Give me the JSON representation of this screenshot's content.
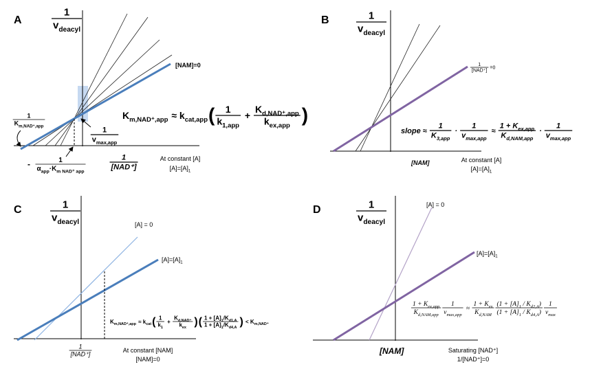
{
  "panels": [
    {
      "label": "A",
      "y_axis_label": {
        "num": [
          {
            "t": "1"
          }
        ],
        "den": [
          {
            "t": "v",
            "sub": "deacyl"
          }
        ]
      },
      "line_label": "[NAM]=0",
      "y_intercept_label": {
        "num": [
          {
            "t": "1"
          }
        ],
        "den": [
          {
            "t": "K",
            "sub": "m,NAD⁺,app"
          }
        ]
      },
      "vmax_label": {
        "num": [
          {
            "t": "1"
          }
        ],
        "den": [
          {
            "t": "v",
            "sub": "max,app"
          }
        ]
      },
      "x_intercept_sign": "-",
      "x_intercept_label": {
        "num": [
          {
            "t": "1"
          }
        ],
        "den": [
          {
            "t": "α",
            "sub": "app"
          },
          {
            "t": "·K",
            "sub": "m NAD⁺ app"
          }
        ]
      },
      "x_axis_label": {
        "num": [
          {
            "t": "1"
          }
        ],
        "den": [
          {
            "t": "[NAD⁺]"
          }
        ]
      },
      "condition": "At constant [A]",
      "condition_value": [
        {
          "t": "[A]=[A]",
          "sub": "1"
        }
      ],
      "equation": [
        {
          "t": "K",
          "sub": "m,NAD⁺,app"
        },
        {
          "t": " ≈ k",
          "sub": "cat,app"
        },
        {
          "t": "("
        },
        {
          "num": [
            {
              "t": "1"
            }
          ],
          "den": [
            {
              "t": "k",
              "sub": "1,app"
            }
          ]
        },
        {
          "t": " + "
        },
        {
          "num": [
            {
              "t": "K",
              "sub": "d,NAD⁺,app"
            }
          ],
          "den": [
            {
              "t": "k",
              "sub": "ex,app"
            }
          ]
        },
        {
          "t": ")"
        }
      ]
    },
    {
      "label": "B",
      "y_axis_label": {
        "num": [
          {
            "t": "1"
          }
        ],
        "den": [
          {
            "t": "v",
            "sub": "deacyl"
          }
        ]
      },
      "line_label": [
        {
          "num": [
            {
              "t": "1"
            }
          ],
          "den": [
            {
              "t": "[NAD⁺]"
            }
          ]
        },
        {
          "t": "=0"
        }
      ],
      "equation": [
        {
          "t": "slope ≈ "
        },
        {
          "num": [
            {
              "t": "1"
            }
          ],
          "den": [
            {
              "t": "K",
              "sub": "3,app"
            }
          ]
        },
        {
          "t": " · "
        },
        {
          "num": [
            {
              "t": "1"
            }
          ],
          "den": [
            {
              "t": "v",
              "sub": "max,app"
            }
          ]
        },
        {
          "t": " ≈ "
        },
        {
          "num": [
            {
              "t": "1 + K",
              "sub": "ex,app"
            }
          ],
          "den": [
            {
              "t": "K",
              "sub": "d,NAM,app"
            }
          ]
        },
        {
          "t": " · "
        },
        {
          "num": [
            {
              "t": "1"
            }
          ],
          "den": [
            {
              "t": "v",
              "sub": "max,app"
            }
          ]
        }
      ],
      "x_axis_label": "[NAM]",
      "condition": "At constant [A]",
      "condition_value": [
        {
          "t": "[A]=[A]",
          "sub": "1"
        }
      ]
    },
    {
      "label": "C",
      "y_axis_label": {
        "num": [
          {
            "t": "1"
          }
        ],
        "den": [
          {
            "t": "v",
            "sub": "deacyl"
          }
        ]
      },
      "line_label_0": "[A] = 0",
      "line_label_1": [
        {
          "t": "[A]=[A]",
          "sub": "1"
        }
      ],
      "equation": [
        {
          "t": "K",
          "sub": "m,NAD⁺,app"
        },
        {
          "t": " ≈ k",
          "sub": "cat"
        },
        {
          "t": "("
        },
        {
          "num": [
            {
              "t": "1"
            }
          ],
          "den": [
            {
              "t": "k",
              "sub": "1"
            }
          ]
        },
        {
          "t": " + "
        },
        {
          "num": [
            {
              "t": "K",
              "sub": "d,NAD⁺"
            }
          ],
          "den": [
            {
              "t": "k",
              "sub": "ex"
            }
          ]
        },
        {
          "t": ")"
        },
        {
          "t": "("
        },
        {
          "num": [
            {
              "t": "1 + [A]",
              "sub": "1"
            },
            {
              "t": "/K",
              "sub": "d1,A"
            }
          ],
          "den": [
            {
              "t": "1 + [A]",
              "sub": "1"
            },
            {
              "t": "/K",
              "sub": "d4,A"
            }
          ]
        },
        {
          "t": ")"
        },
        {
          "t": " < K",
          "sub": "m,NAD⁺"
        }
      ],
      "x_axis_label": {
        "num": [
          {
            "t": "1"
          }
        ],
        "den": [
          {
            "t": "[NAD⁺]"
          }
        ]
      },
      "condition": "At constant [NAM]",
      "condition_value": "[NAM]=0"
    },
    {
      "label": "D",
      "y_axis_label": {
        "num": [
          {
            "t": "1"
          }
        ],
        "den": [
          {
            "t": "v",
            "sub": "deacyl"
          }
        ]
      },
      "line_label_0": "[A] = 0",
      "line_label_1": [
        {
          "t": "[A]=[A]",
          "sub": "1"
        }
      ],
      "equation": [
        {
          "num": [
            {
              "t": "1 + K",
              "sub": "ex,app"
            }
          ],
          "den": [
            {
              "t": "K",
              "sub": "d,NAM,app"
            }
          ]
        },
        {
          "num": [
            {
              "t": "1"
            }
          ],
          "den": [
            {
              "t": "v",
              "sub": "max,app"
            }
          ]
        },
        {
          "t": " ≈ "
        },
        {
          "num": [
            {
              "t": "1 + K",
              "sub": "ex"
            }
          ],
          "den": [
            {
              "t": "K",
              "sub": "d,NAM"
            }
          ]
        },
        {
          "num": [
            {
              "t": "(1 + [A]",
              "sub": "1"
            },
            {
              "t": " / K",
              "sub": "d2,A"
            },
            {
              "t": ")"
            }
          ],
          "den": [
            {
              "t": "(1 + [A]",
              "sub": "1"
            },
            {
              "t": " / K",
              "sub": "d4,A"
            },
            {
              "t": ")"
            }
          ]
        },
        {
          "num": [
            {
              "t": "1"
            }
          ],
          "den": [
            {
              "t": "v",
              "sub": "max"
            }
          ]
        }
      ],
      "x_axis_label": "[NAM]",
      "condition": "Saturating [NAD⁺]",
      "condition_value": "1/[NAD⁺]=0"
    }
  ]
}
